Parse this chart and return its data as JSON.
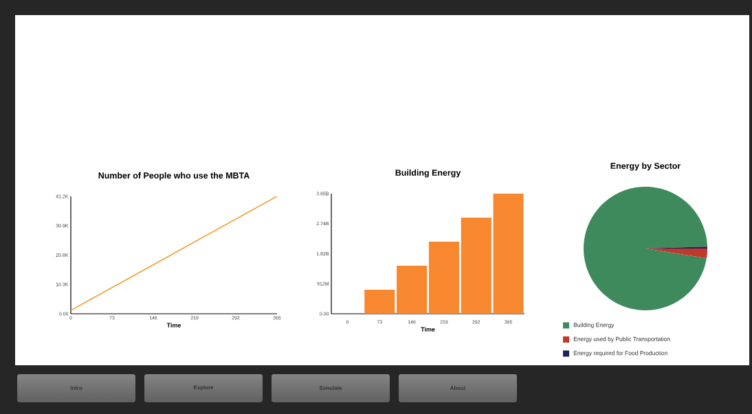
{
  "chart_data": [
    {
      "type": "line",
      "title": "Number of People who use the MBTA",
      "xlabel": "Time",
      "x": [
        0,
        365
      ],
      "values": [
        1200,
        41200
      ],
      "color": "#f7931e",
      "xlim": [
        0,
        365
      ],
      "xticks": [
        0,
        73,
        146,
        219,
        292,
        365
      ],
      "ylim": [
        0,
        41200
      ],
      "yticks": [
        {
          "value": 0,
          "label": "0.00"
        },
        {
          "value": 10300,
          "label": "10.3K"
        },
        {
          "value": 20600,
          "label": "20.6K"
        },
        {
          "value": 30900,
          "label": "30.9K"
        },
        {
          "value": 41200,
          "label": "41.2K"
        }
      ]
    },
    {
      "type": "bar",
      "title": "Building Energy",
      "xlabel": "Time",
      "categories": [
        "0",
        "73",
        "146",
        "219",
        "292",
        "365"
      ],
      "values": [
        0,
        730000000,
        1460000000,
        2190000000,
        2920000000,
        3650000000
      ],
      "color": "#f7882f",
      "ylim": [
        0,
        3650000000
      ],
      "yticks": [
        {
          "value": 0,
          "label": "0.00"
        },
        {
          "value": 912000000,
          "label": "912M"
        },
        {
          "value": 1820000000,
          "label": "1.82B"
        },
        {
          "value": 2740000000,
          "label": "2.74B"
        },
        {
          "value": 3650000000,
          "label": "3.65B"
        }
      ]
    },
    {
      "type": "pie",
      "title": "Energy by Sector",
      "categories": [
        "Building Energy",
        "Energy used by Public Transportation",
        "Energy required for Food Production"
      ],
      "values": [
        97,
        2.5,
        0.5
      ],
      "colors": [
        "#3f8a5c",
        "#c0392b",
        "#1c2160"
      ],
      "legend": "bottom"
    },
    {
      "type": "other",
      "annotations": [
        "Intro",
        "Explore",
        "Simulate",
        "About"
      ]
    }
  ]
}
